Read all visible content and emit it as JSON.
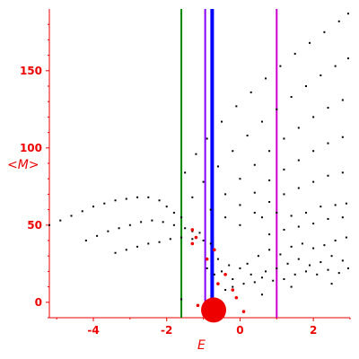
{
  "chart_data": {
    "type": "scatter",
    "title": "",
    "xlabel": "E",
    "ylabel": "<M>",
    "xlim": [
      -5.2,
      3.0
    ],
    "ylim": [
      -10,
      190
    ],
    "x_ticks": [
      -4,
      -2,
      0,
      2
    ],
    "x_tick_labels": [
      "-4",
      "-2",
      "0",
      "2"
    ],
    "y_ticks": [
      0,
      50,
      100,
      150
    ],
    "y_tick_labels": [
      "0",
      "50",
      "100",
      "150"
    ],
    "grid": false,
    "legend": "none",
    "colors": {
      "axis": "#ee0000",
      "points": "#000000",
      "highlight": "#ee0000",
      "line_green": "#008800",
      "line_magenta": "#cc00cc",
      "line_blue": "#0000ff",
      "line_violet": "#8800ff"
    },
    "vertical_lines": [
      {
        "x": -1.6,
        "color": "#008800"
      },
      {
        "x": -0.95,
        "color": "#8800ff"
      },
      {
        "x": -0.76,
        "color": "#0000ff"
      },
      {
        "x": 1.0,
        "color": "#cc00cc"
      }
    ],
    "series": [
      {
        "values": [
          [
            -5.2,
            50
          ],
          [
            -4.9,
            53
          ],
          [
            -4.6,
            56
          ],
          [
            -4.3,
            59
          ],
          [
            -4.0,
            62
          ],
          [
            -3.7,
            64
          ],
          [
            -3.4,
            66
          ],
          [
            -3.1,
            67
          ],
          [
            -2.8,
            68
          ],
          [
            -2.5,
            68
          ],
          [
            -2.2,
            66
          ],
          [
            -2.0,
            62
          ],
          [
            -1.8,
            58
          ],
          [
            -1.6,
            55
          ],
          [
            -4.2,
            40
          ],
          [
            -3.9,
            43
          ],
          [
            -3.6,
            46
          ],
          [
            -3.3,
            48
          ],
          [
            -3.0,
            50
          ],
          [
            -2.7,
            52
          ],
          [
            -2.4,
            53
          ],
          [
            -2.1,
            52
          ],
          [
            -1.8,
            50
          ],
          [
            -1.5,
            48
          ],
          [
            -1.3,
            46
          ],
          [
            -1.1,
            45
          ],
          [
            -3.4,
            32
          ],
          [
            -3.1,
            34
          ],
          [
            -2.8,
            36
          ],
          [
            -2.5,
            38
          ],
          [
            -2.2,
            39
          ],
          [
            -1.9,
            41
          ],
          [
            -1.6,
            42
          ],
          [
            -1.3,
            41
          ],
          [
            -1.0,
            40
          ],
          [
            -0.8,
            38
          ],
          [
            -1.5,
            84
          ],
          [
            -1.2,
            96
          ],
          [
            -0.9,
            106
          ],
          [
            -0.5,
            117
          ],
          [
            -0.1,
            127
          ],
          [
            0.3,
            136
          ],
          [
            0.7,
            145
          ],
          [
            1.1,
            153
          ],
          [
            1.5,
            161
          ],
          [
            1.9,
            168
          ],
          [
            2.3,
            175
          ],
          [
            2.7,
            182
          ],
          [
            2.95,
            187
          ],
          [
            -1.3,
            68
          ],
          [
            -1.0,
            78
          ],
          [
            -0.6,
            88
          ],
          [
            -0.2,
            98
          ],
          [
            0.2,
            108
          ],
          [
            0.6,
            117
          ],
          [
            1.0,
            125
          ],
          [
            1.4,
            133
          ],
          [
            1.8,
            140
          ],
          [
            2.2,
            147
          ],
          [
            2.6,
            153
          ],
          [
            2.95,
            158
          ],
          [
            -0.8,
            60
          ],
          [
            -0.4,
            70
          ],
          [
            0.0,
            80
          ],
          [
            0.4,
            89
          ],
          [
            0.8,
            98
          ],
          [
            1.2,
            106
          ],
          [
            1.6,
            113
          ],
          [
            2.0,
            120
          ],
          [
            2.4,
            126
          ],
          [
            2.8,
            131
          ],
          [
            -0.4,
            55
          ],
          [
            0.0,
            63
          ],
          [
            0.4,
            71
          ],
          [
            0.8,
            79
          ],
          [
            1.2,
            86
          ],
          [
            1.6,
            92
          ],
          [
            2.0,
            98
          ],
          [
            2.4,
            103
          ],
          [
            2.8,
            107
          ],
          [
            0.0,
            50
          ],
          [
            0.4,
            58
          ],
          [
            0.8,
            65
          ],
          [
            1.2,
            70
          ],
          [
            1.6,
            74
          ],
          [
            2.0,
            78
          ],
          [
            2.4,
            82
          ],
          [
            2.8,
            84
          ],
          [
            0.6,
            55
          ],
          [
            1.0,
            58
          ],
          [
            1.4,
            56
          ],
          [
            1.8,
            58
          ],
          [
            2.2,
            62
          ],
          [
            2.6,
            63
          ],
          [
            2.9,
            64
          ],
          [
            0.8,
            44
          ],
          [
            1.2,
            47
          ],
          [
            1.6,
            49
          ],
          [
            2.0,
            51
          ],
          [
            2.4,
            54
          ],
          [
            2.8,
            55
          ],
          [
            -0.6,
            28
          ],
          [
            -0.3,
            24
          ],
          [
            0.0,
            22
          ],
          [
            0.3,
            18
          ],
          [
            0.6,
            16
          ],
          [
            0.9,
            14
          ],
          [
            1.2,
            15
          ],
          [
            1.5,
            18
          ],
          [
            1.8,
            20
          ],
          [
            2.1,
            18
          ],
          [
            2.4,
            21
          ],
          [
            2.7,
            19
          ],
          [
            2.95,
            22
          ],
          [
            -0.5,
            20
          ],
          [
            -0.2,
            15
          ],
          [
            0.1,
            12
          ],
          [
            0.4,
            13
          ],
          [
            0.7,
            20
          ],
          [
            1.0,
            22
          ],
          [
            1.3,
            25
          ],
          [
            1.6,
            28
          ],
          [
            1.9,
            24
          ],
          [
            2.2,
            26
          ],
          [
            2.5,
            30
          ],
          [
            2.8,
            27
          ],
          [
            0.2,
            25
          ],
          [
            0.5,
            30
          ],
          [
            0.8,
            34
          ],
          [
            1.1,
            31
          ],
          [
            1.4,
            36
          ],
          [
            1.7,
            38
          ],
          [
            2.0,
            35
          ],
          [
            2.3,
            37
          ],
          [
            2.6,
            40
          ],
          [
            2.9,
            42
          ],
          [
            -0.9,
            22
          ],
          [
            -0.7,
            18
          ],
          [
            -0.4,
            8
          ],
          [
            -0.2,
            10
          ],
          [
            0.6,
            5
          ],
          [
            1.4,
            10
          ],
          [
            2.5,
            12
          ],
          [
            -1.6,
            2
          ]
        ]
      },
      {
        "values": [
          [
            -1.3,
            47
          ],
          [
            -1.2,
            42
          ],
          [
            -1.3,
            38
          ],
          [
            -0.9,
            28
          ],
          [
            -0.7,
            34
          ],
          [
            -0.6,
            12
          ],
          [
            -0.4,
            18
          ],
          [
            -0.2,
            8
          ],
          [
            -1.15,
            -2
          ],
          [
            -0.55,
            -1
          ],
          [
            -0.7,
            -4
          ],
          [
            -0.1,
            3
          ],
          [
            0.1,
            -6
          ],
          [
            -1.0,
            -5
          ]
        ]
      }
    ]
  }
}
